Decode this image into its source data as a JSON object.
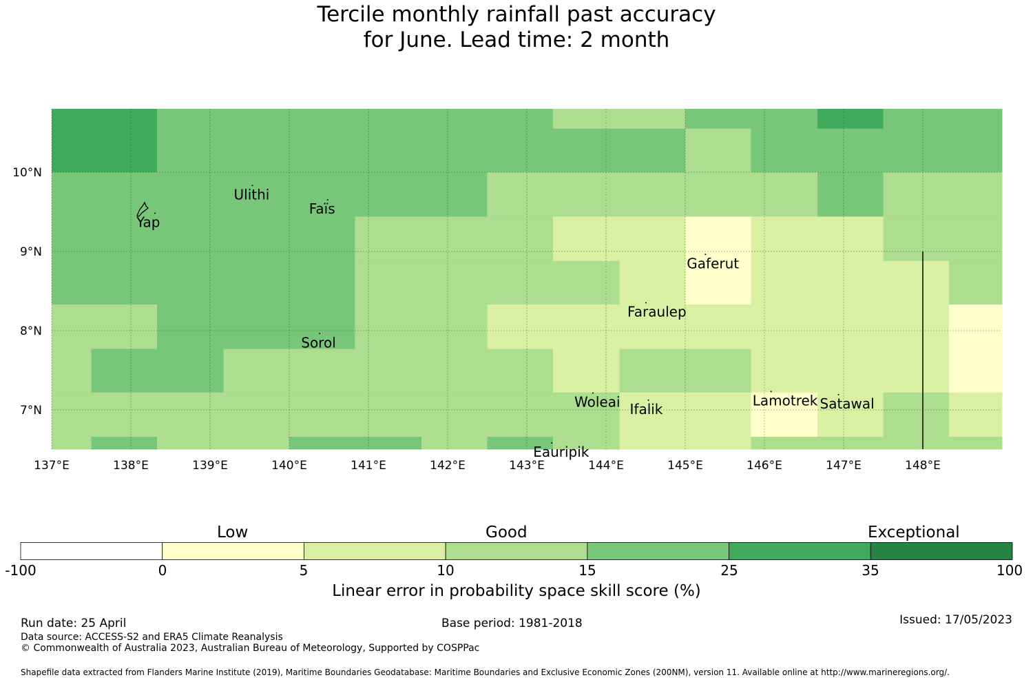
{
  "title": {
    "line1": "Tercile monthly rainfall past accuracy",
    "line2": "for June. Lead time: 2 month"
  },
  "map": {
    "lon_range": [
      137.0,
      149.0
    ],
    "lat_range": [
      6.5,
      10.8
    ],
    "lon_ticks": [
      "137°E",
      "138°E",
      "139°E",
      "140°E",
      "141°E",
      "142°E",
      "143°E",
      "144°E",
      "145°E",
      "146°E",
      "147°E",
      "148°E"
    ],
    "lat_ticks": [
      "10°N",
      "9°N",
      "8°N",
      "7°N"
    ],
    "places": [
      {
        "name": "Ulithi",
        "lon": 139.3,
        "lat": 9.85
      },
      {
        "name": "Faïs",
        "lon": 140.25,
        "lat": 9.67
      },
      {
        "name": "Yap",
        "lon": 138.07,
        "lat": 9.5
      },
      {
        "name": "Gaferut",
        "lon": 145.02,
        "lat": 8.98
      },
      {
        "name": "Faraulep",
        "lon": 144.27,
        "lat": 8.37
      },
      {
        "name": "Sorol",
        "lon": 140.15,
        "lat": 7.98
      },
      {
        "name": "Woleai",
        "lon": 143.6,
        "lat": 7.23
      },
      {
        "name": "Ifalik",
        "lon": 144.3,
        "lat": 7.14
      },
      {
        "name": "Lamotrek",
        "lon": 145.85,
        "lat": 7.25
      },
      {
        "name": "Satawal",
        "lon": 146.7,
        "lat": 7.21
      },
      {
        "name": "Eauripik",
        "lon": 143.08,
        "lat": 6.6
      }
    ],
    "boundary_line": {
      "lon": 148.0,
      "lat_from": 6.5,
      "lat_to": 9.0
    }
  },
  "colorbar": {
    "categories": [
      "Low",
      "Good",
      "Exceptional"
    ],
    "ticks": [
      "-100",
      "0",
      "5",
      "10",
      "15",
      "25",
      "35",
      "100"
    ],
    "colors": [
      "#ffffff",
      "#ffffcc",
      "#d9f0a3",
      "#addd8e",
      "#78c679",
      "#41ab5d",
      "#238443"
    ],
    "title": "Linear error in probability space skill score (%)"
  },
  "footer": {
    "run_date": "Run date: 25 April",
    "base_period": "Base period: 1981-2018",
    "issued": "Issued: 17/05/2023",
    "data_source": "Data source: ACCESS-S2 and ERA5 Climate Reanalysis",
    "copyright": "© Commonwealth of Australia 2023, Australian Bureau of Meteorology, Supported by COSPPac",
    "shapefile": "Shapefile data extracted from Flanders Marine Institute (2019), Maritime Boundaries Geodatabase: Maritime Boundaries and Exclusive Economic Zones (200NM), version 11. Available online at http://www.marineregions.org/."
  },
  "grid": {
    "lon_edges": [
      137.0,
      137.5,
      138.33,
      139.17,
      140.0,
      140.83,
      141.67,
      142.5,
      143.33,
      144.17,
      145.0,
      145.83,
      146.67,
      147.5,
      148.33,
      149.0
    ],
    "lat_edges": [
      10.8,
      10.55,
      10.0,
      9.44,
      8.88,
      8.33,
      7.77,
      7.22,
      6.66,
      6.5
    ],
    "category_index_rows": [
      [
        5,
        5,
        4,
        4,
        4,
        4,
        4,
        4,
        3,
        3,
        4,
        4,
        5,
        4,
        4
      ],
      [
        5,
        5,
        4,
        4,
        4,
        4,
        4,
        4,
        4,
        4,
        3,
        4,
        4,
        4,
        4
      ],
      [
        4,
        4,
        4,
        4,
        4,
        4,
        4,
        3,
        3,
        3,
        3,
        3,
        4,
        3,
        3
      ],
      [
        4,
        4,
        4,
        4,
        4,
        3,
        3,
        3,
        2,
        2,
        1,
        2,
        2,
        3,
        3
      ],
      [
        4,
        4,
        4,
        4,
        4,
        3,
        3,
        3,
        3,
        2,
        1,
        2,
        2,
        2,
        3
      ],
      [
        3,
        3,
        4,
        4,
        4,
        3,
        3,
        2,
        2,
        2,
        2,
        2,
        2,
        2,
        1
      ],
      [
        3,
        4,
        4,
        3,
        3,
        3,
        3,
        3,
        2,
        3,
        3,
        2,
        2,
        2,
        1
      ],
      [
        3,
        3,
        3,
        3,
        3,
        3,
        3,
        3,
        3,
        2,
        2,
        1,
        2,
        3,
        2
      ],
      [
        3,
        4,
        3,
        3,
        4,
        4,
        3,
        4,
        3,
        2,
        2,
        3,
        3,
        3,
        3
      ]
    ]
  }
}
